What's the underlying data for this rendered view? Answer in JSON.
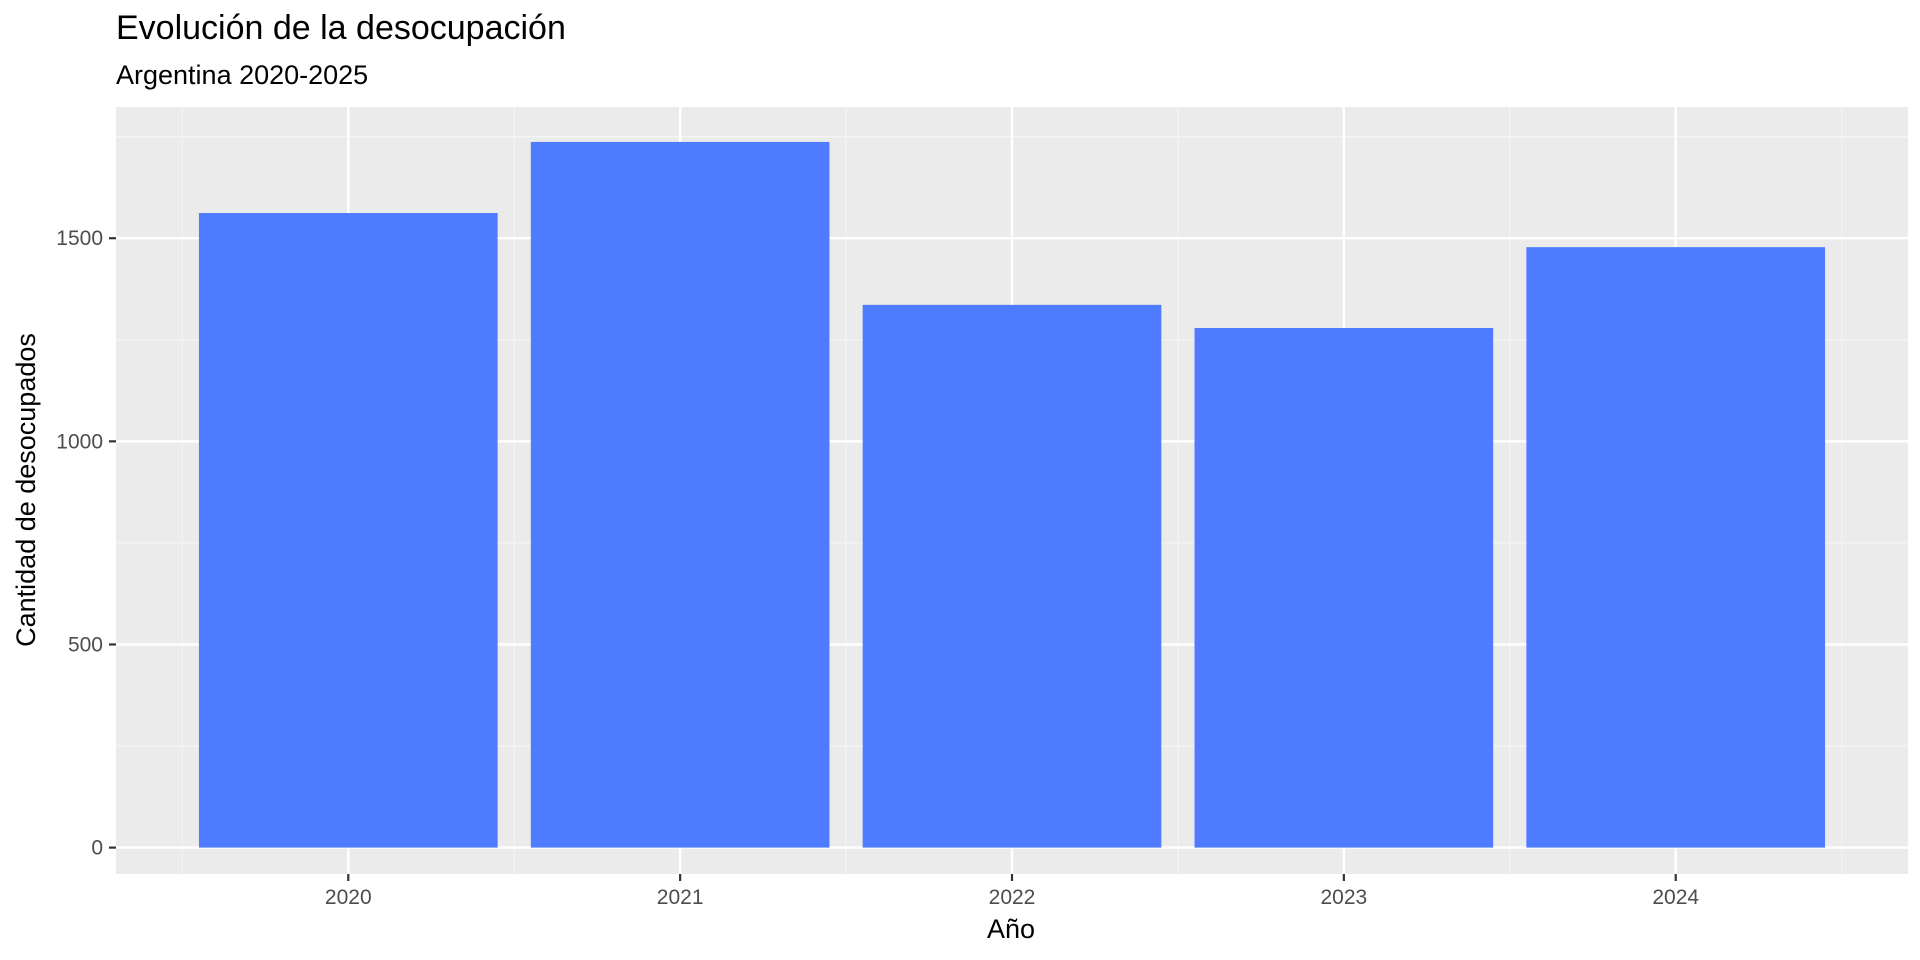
{
  "chart_data": {
    "type": "bar",
    "title": "Evolución de la desocupación",
    "subtitle": "Argentina 2020-2025",
    "xlabel": "Año",
    "ylabel": "Cantidad de desocupados",
    "categories": [
      "2020",
      "2021",
      "2022",
      "2023",
      "2024"
    ],
    "values": [
      1562,
      1737,
      1336,
      1279,
      1478
    ],
    "ylim": [
      -65,
      1823
    ],
    "yticks": [
      0,
      500,
      1000,
      1500
    ],
    "ytick_labels": [
      "0",
      "500",
      "1000",
      "1500"
    ],
    "grid": true,
    "legend": "none",
    "colors": {
      "bar": "#4e7bff",
      "panel": "#ebebeb",
      "grid_major": "#ffffff",
      "grid_minor": "#f5f5f5"
    }
  }
}
